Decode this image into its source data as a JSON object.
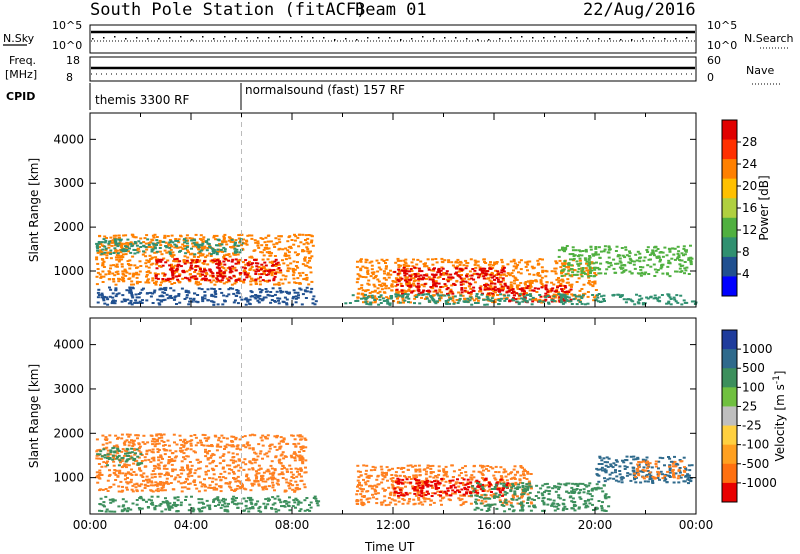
{
  "header": {
    "title": "South Pole Station (fitACF)",
    "beam": "Beam 01",
    "date": "22/Aug/2016"
  },
  "strips": {
    "nsky_label": "N.Sky",
    "nsearch_label": "N.Search",
    "noise_ticks_left": [
      "10^5",
      "10^0"
    ],
    "noise_ticks_right": [
      "10^5",
      "10^0"
    ],
    "freq_label_1": "Freq.",
    "freq_label_2": "[MHz]",
    "freq_ticks": [
      "18",
      "8"
    ],
    "nave_label": "Nave",
    "nave_ticks": [
      "60",
      "0"
    ],
    "cpid_label": "CPID",
    "cpid_segments": [
      {
        "label": "themis 3300 RF",
        "start_hour": 0.0
      },
      {
        "label": "normalsound (fast) 157 RF",
        "start_hour": 6.0
      }
    ]
  },
  "chart_data": [
    {
      "type": "heatmap",
      "name": "power",
      "ylabel": "Slant Range [km]",
      "yticks": [
        "1000",
        "2000",
        "3000",
        "4000"
      ],
      "ylim": [
        180,
        4600
      ],
      "xlim_hours": [
        0,
        24
      ],
      "colorbar_label": "Power [dB]",
      "colorbar_ticks": [
        "28",
        "24",
        "20",
        "16",
        "12",
        "8",
        "4"
      ],
      "colorbar_colors": [
        "#e00000",
        "#ff3000",
        "#ff8000",
        "#ffc000",
        "#b0d040",
        "#50b040",
        "#309070",
        "#205090",
        "#0000ff"
      ],
      "echo_regions": [
        {
          "t0": 0.2,
          "t1": 8.8,
          "r0": 700,
          "r1": 1850,
          "color": "#ff8000"
        },
        {
          "t0": 0.2,
          "t1": 6.0,
          "r0": 1400,
          "r1": 1750,
          "color": "#309070"
        },
        {
          "t0": 2.5,
          "t1": 7.5,
          "r0": 800,
          "r1": 1300,
          "color": "#e00000"
        },
        {
          "t0": 0.2,
          "t1": 9.0,
          "r0": 250,
          "r1": 650,
          "color": "#205090"
        },
        {
          "t0": 10.5,
          "t1": 20.0,
          "r0": 300,
          "r1": 1300,
          "color": "#ff8000"
        },
        {
          "t0": 12.0,
          "t1": 16.5,
          "r0": 500,
          "r1": 1100,
          "color": "#e00000"
        },
        {
          "t0": 16.5,
          "t1": 19.0,
          "r0": 300,
          "r1": 700,
          "color": "#e00000"
        },
        {
          "t0": 18.5,
          "t1": 23.8,
          "r0": 900,
          "r1": 1600,
          "color": "#50b040"
        },
        {
          "t0": 10.0,
          "t1": 24.0,
          "r0": 250,
          "r1": 500,
          "color": "#309070"
        }
      ]
    },
    {
      "type": "heatmap",
      "name": "velocity",
      "ylabel": "Slant Range [km]",
      "yticks": [
        "1000",
        "2000",
        "3000",
        "4000"
      ],
      "ylim": [
        180,
        4600
      ],
      "xlim_hours": [
        0,
        24
      ],
      "xticks": [
        "00:00",
        "04:00",
        "08:00",
        "12:00",
        "16:00",
        "20:00",
        "00:00"
      ],
      "xlabel": "Time UT",
      "colorbar_label": "Velocity [m s^-1]",
      "colorbar_ticks": [
        "1000",
        "500",
        "100",
        "25",
        "-25",
        "-100",
        "-500",
        "-1000"
      ],
      "colorbar_colors": [
        "#1f3c9c",
        "#2f6a8c",
        "#3c8f5c",
        "#70c040",
        "#bfbfbf",
        "#ffd040",
        "#ffa020",
        "#ff7010",
        "#e80000"
      ],
      "echo_regions": [
        {
          "t0": 0.2,
          "t1": 8.5,
          "r0": 700,
          "r1": 2000,
          "color": "#ff8020"
        },
        {
          "t0": 0.2,
          "t1": 2.0,
          "r0": 1300,
          "r1": 1700,
          "color": "#3c8f5c"
        },
        {
          "t0": 0.2,
          "t1": 9.0,
          "r0": 250,
          "r1": 600,
          "color": "#3c8f5c"
        },
        {
          "t0": 10.5,
          "t1": 17.5,
          "r0": 400,
          "r1": 1300,
          "color": "#ff8020"
        },
        {
          "t0": 12.0,
          "t1": 16.5,
          "r0": 600,
          "r1": 1000,
          "color": "#e80000"
        },
        {
          "t0": 15.0,
          "t1": 20.5,
          "r0": 250,
          "r1": 900,
          "color": "#3c8f5c"
        },
        {
          "t0": 20.0,
          "t1": 23.8,
          "r0": 900,
          "r1": 1500,
          "color": "#2f6a8c"
        },
        {
          "t0": 21.5,
          "t1": 23.5,
          "r0": 1000,
          "r1": 1400,
          "color": "#ff8020"
        }
      ]
    }
  ]
}
